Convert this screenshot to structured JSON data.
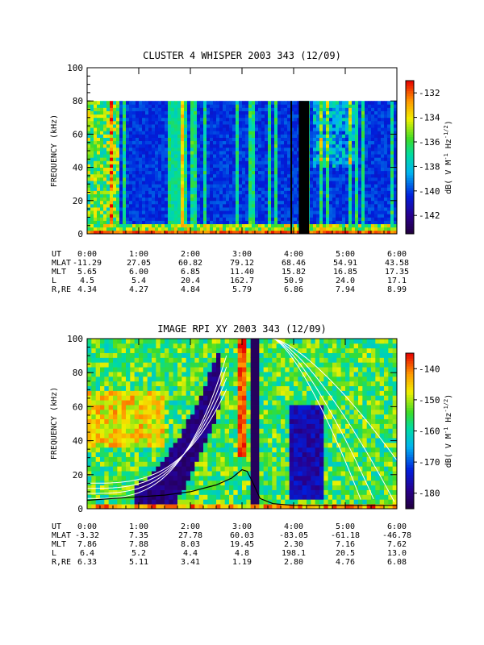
{
  "chart_data": [
    {
      "type": "heatmap",
      "title": "CLUSTER 4 WHISPER 2003 343 (12/09)",
      "ylabel": "FREQUENCY (kHz)",
      "ylim": [
        0,
        100
      ],
      "yticks": [
        "0",
        "20",
        "40",
        "60",
        "80",
        "100"
      ],
      "ytick_values": [
        0,
        20,
        40,
        60,
        80,
        100
      ],
      "xlim": [
        0,
        6
      ],
      "xticks": [
        "0:00",
        "1:00",
        "2:00",
        "3:00",
        "4:00",
        "5:00",
        "6:00"
      ],
      "xtick_values": [
        0,
        1,
        2,
        3,
        4,
        5,
        6
      ],
      "data_max_frequency": 80,
      "colorbar": {
        "label": "dB( V M⁻¹ Hz⁻¹ᐟ²)",
        "label_parts": [
          "dB( V M",
          "-1",
          " Hz",
          "-1/2",
          ")"
        ],
        "ticks": [
          "-132",
          "-134",
          "-136",
          "-138",
          "-140",
          "-142"
        ],
        "tick_values": [
          -132,
          -134,
          -136,
          -138,
          -140,
          -142
        ],
        "range": [
          -143.5,
          -131
        ]
      },
      "ephemeris": {
        "labels": [
          "UT",
          "MLAT",
          "MLT",
          "L",
          "R,RE"
        ],
        "rows": [
          [
            "0:00",
            "1:00",
            "2:00",
            "3:00",
            "4:00",
            "5:00",
            "6:00"
          ],
          [
            "-11.29",
            "27.05",
            "60.82",
            "79.12",
            "68.46",
            "54.91",
            "43.58"
          ],
          [
            "5.65",
            "6.00",
            "6.85",
            "11.40",
            "15.82",
            "16.85",
            "17.35"
          ],
          [
            "4.5",
            "5.4",
            "20.4",
            "162.7",
            "50.9",
            "24.0",
            "17.1"
          ],
          [
            "4.34",
            "4.27",
            "4.84",
            "5.79",
            "6.86",
            "7.94",
            "8.99"
          ]
        ]
      },
      "data_gaps": [
        {
          "start_ut": 3.94,
          "end_ut": 3.97
        },
        {
          "start_ut": 4.1,
          "end_ut": 4.3
        }
      ]
    },
    {
      "type": "heatmap",
      "title": "IMAGE RPI XY 2003 343 (12/09)",
      "ylabel": "FREQUENCY (kHz)",
      "ylim": [
        0,
        100
      ],
      "yticks": [
        "0",
        "20",
        "40",
        "60",
        "80",
        "100"
      ],
      "ytick_values": [
        0,
        20,
        40,
        60,
        80,
        100
      ],
      "xlim": [
        0,
        6
      ],
      "xticks": [
        "0:00",
        "1:00",
        "2:00",
        "3:00",
        "4:00",
        "5:00",
        "6:00"
      ],
      "xtick_values": [
        0,
        1,
        2,
        3,
        4,
        5,
        6
      ],
      "data_max_frequency": 100,
      "colorbar": {
        "label": "dB( V M⁻¹ Hz⁻¹ᐟ²)",
        "label_parts": [
          "dB( V M",
          "-1",
          " Hz",
          "-1/2",
          ")"
        ],
        "ticks": [
          "-140",
          "-150",
          "-160",
          "-170",
          "-180"
        ],
        "tick_values": [
          -140,
          -150,
          -160,
          -170,
          -180
        ],
        "range": [
          -185,
          -135
        ]
      },
      "ephemeris": {
        "labels": [
          "UT",
          "MLAT",
          "MLT",
          "L",
          "R,RE"
        ],
        "rows": [
          [
            "0:00",
            "1:00",
            "2:00",
            "3:00",
            "4:00",
            "5:00",
            "6:00"
          ],
          [
            "-3.32",
            "7.35",
            "27.78",
            "60.03",
            "-83.05",
            "-61.18",
            "-46.78"
          ],
          [
            "7.86",
            "7.88",
            "8.03",
            "19.45",
            "2.30",
            "7.16",
            "7.62"
          ],
          [
            "6.4",
            "5.2",
            "4.4",
            "4.8",
            "198.1",
            "20.5",
            "13.0"
          ],
          [
            "6.33",
            "5.11",
            "3.41",
            "1.19",
            "2.80",
            "4.76",
            "6.08"
          ]
        ]
      },
      "plasma_frequency_curve": {
        "ut": [
          0.0,
          0.5,
          1.0,
          1.5,
          2.0,
          2.5,
          2.8,
          3.0,
          3.1,
          3.2,
          3.35,
          3.6,
          4.0,
          4.5,
          5.0,
          5.5,
          6.0
        ],
        "f": [
          5,
          6,
          7,
          8,
          10,
          14,
          18,
          23,
          22,
          16,
          6,
          3,
          2,
          2,
          2,
          2,
          2
        ]
      }
    }
  ]
}
